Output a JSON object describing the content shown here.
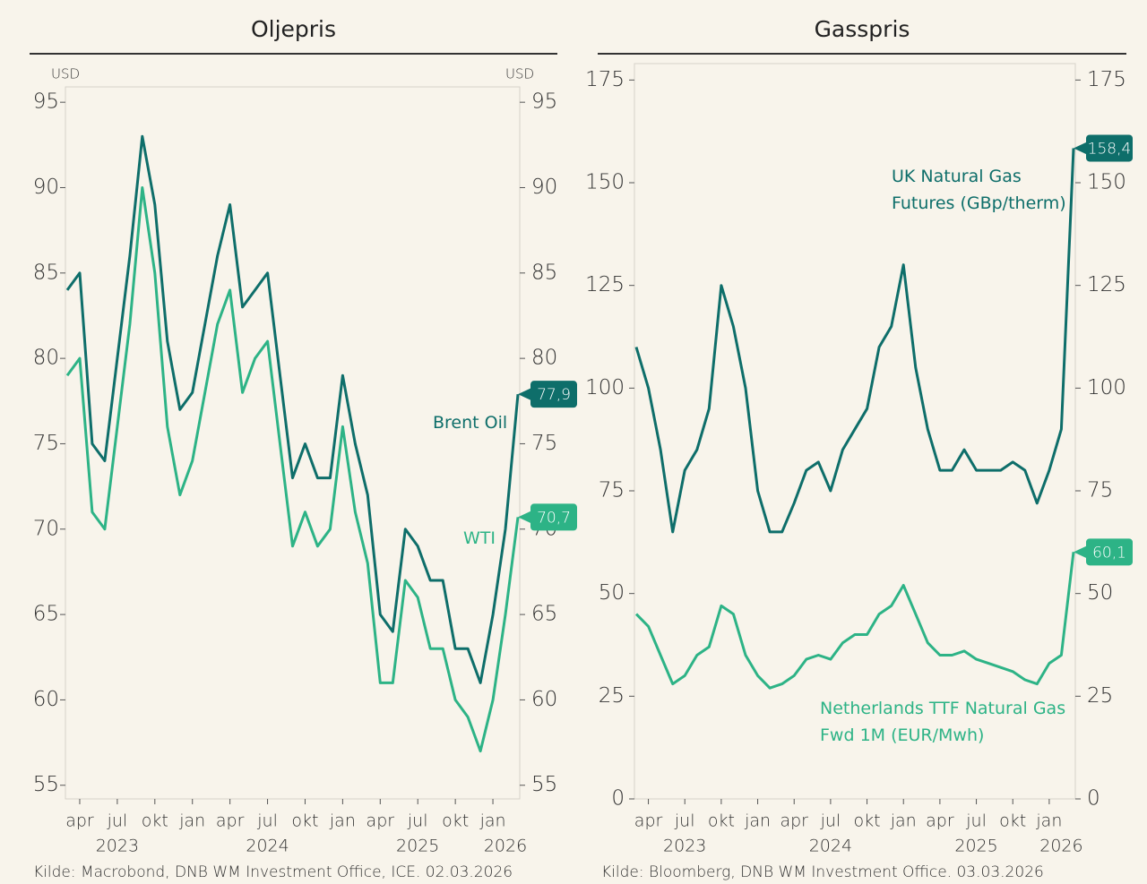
{
  "chart_data": [
    {
      "type": "line",
      "title": "Oljepris",
      "ylabel": "USD",
      "y2label": "USD",
      "source": "Kilde: Macrobond, DNB WM Investment Office, ICE. 02.03.2026",
      "x": [
        "2023-03",
        "2023-04",
        "2023-05",
        "2023-06",
        "2023-07",
        "2023-08",
        "2023-09",
        "2023-10",
        "2023-11",
        "2023-12",
        "2024-01",
        "2024-02",
        "2024-03",
        "2024-04",
        "2024-05",
        "2024-06",
        "2024-07",
        "2024-08",
        "2024-09",
        "2024-10",
        "2024-11",
        "2024-12",
        "2025-01",
        "2025-02",
        "2025-03",
        "2025-04",
        "2025-05",
        "2025-06",
        "2025-07",
        "2025-08",
        "2025-09",
        "2025-10",
        "2025-11",
        "2025-12",
        "2026-01",
        "2026-02",
        "2026-03"
      ],
      "xlim": [
        "2023-03",
        "2026-03"
      ],
      "xticks": [
        {
          "value": "2023-04",
          "label": "apr"
        },
        {
          "value": "2023-07",
          "label": "jul"
        },
        {
          "value": "2023-10",
          "label": "okt"
        },
        {
          "value": "2024-01",
          "label": "jan"
        },
        {
          "value": "2024-04",
          "label": "apr"
        },
        {
          "value": "2024-07",
          "label": "jul"
        },
        {
          "value": "2024-10",
          "label": "okt"
        },
        {
          "value": "2025-01",
          "label": "jan"
        },
        {
          "value": "2025-04",
          "label": "apr"
        },
        {
          "value": "2025-07",
          "label": "jul"
        },
        {
          "value": "2025-10",
          "label": "okt"
        },
        {
          "value": "2026-01",
          "label": "jan"
        }
      ],
      "year_labels": [
        {
          "value": "2023-07",
          "label": "2023"
        },
        {
          "value": "2024-07",
          "label": "2024"
        },
        {
          "value": "2025-07",
          "label": "2025"
        },
        {
          "value": "2026-02",
          "label": "2026"
        }
      ],
      "ylim": [
        54.2,
        95.9
      ],
      "yticks": [
        55,
        60,
        65,
        70,
        75,
        80,
        85,
        90,
        95
      ],
      "y2lim": [
        54.2,
        95.9
      ],
      "y2ticks": [
        55,
        60,
        65,
        70,
        75,
        80,
        85,
        90,
        95
      ],
      "series": [
        {
          "name": "Brent Oil",
          "color": "#0e6e6a",
          "values": [
            84,
            85,
            75,
            74,
            80,
            86,
            93,
            89,
            81,
            77,
            78,
            82,
            86,
            89,
            83,
            84,
            85,
            79,
            73,
            75,
            73,
            73,
            79,
            75,
            72,
            65,
            64,
            70,
            69,
            67,
            67,
            63,
            63,
            61,
            65,
            70,
            77.9
          ],
          "value_labels": [
            null,
            null,
            null,
            null,
            null,
            null,
            null,
            null,
            null,
            null,
            null,
            null,
            null,
            null,
            null,
            null,
            null,
            null,
            null,
            null,
            null,
            null,
            null,
            null,
            null,
            null,
            null,
            null,
            null,
            null,
            null,
            null,
            null,
            null,
            null,
            null,
            "77,9"
          ]
        },
        {
          "name": "WTI",
          "color": "#2db386",
          "values": [
            79,
            80,
            71,
            70,
            76,
            82,
            90,
            85,
            76,
            72,
            74,
            78,
            82,
            84,
            78,
            80,
            81,
            75,
            69,
            71,
            69,
            70,
            76,
            71,
            68,
            61,
            61,
            67,
            66,
            63,
            63,
            60,
            59,
            57,
            60,
            65,
            70.7
          ],
          "value_labels": [
            null,
            null,
            null,
            null,
            null,
            null,
            null,
            null,
            null,
            null,
            null,
            null,
            null,
            null,
            null,
            null,
            null,
            null,
            null,
            null,
            null,
            null,
            null,
            null,
            null,
            null,
            null,
            null,
            null,
            null,
            null,
            null,
            null,
            null,
            null,
            null,
            "70,7"
          ]
        }
      ]
    },
    {
      "type": "line",
      "title": "Gasspris",
      "source": "Kilde: Bloomberg, DNB WM Investment Office. 03.03.2026",
      "x": [
        "2023-03",
        "2023-04",
        "2023-05",
        "2023-06",
        "2023-07",
        "2023-08",
        "2023-09",
        "2023-10",
        "2023-11",
        "2023-12",
        "2024-01",
        "2024-02",
        "2024-03",
        "2024-04",
        "2024-05",
        "2024-06",
        "2024-07",
        "2024-08",
        "2024-09",
        "2024-10",
        "2024-11",
        "2024-12",
        "2025-01",
        "2025-02",
        "2025-03",
        "2025-04",
        "2025-05",
        "2025-06",
        "2025-07",
        "2025-08",
        "2025-09",
        "2025-10",
        "2025-11",
        "2025-12",
        "2026-01",
        "2026-02",
        "2026-03"
      ],
      "xlim": [
        "2023-03",
        "2026-03"
      ],
      "xticks": [
        {
          "value": "2023-04",
          "label": "apr"
        },
        {
          "value": "2023-07",
          "label": "jul"
        },
        {
          "value": "2023-10",
          "label": "okt"
        },
        {
          "value": "2024-01",
          "label": "jan"
        },
        {
          "value": "2024-04",
          "label": "apr"
        },
        {
          "value": "2024-07",
          "label": "jul"
        },
        {
          "value": "2024-10",
          "label": "okt"
        },
        {
          "value": "2025-01",
          "label": "jan"
        },
        {
          "value": "2025-04",
          "label": "apr"
        },
        {
          "value": "2025-07",
          "label": "jul"
        },
        {
          "value": "2025-10",
          "label": "okt"
        },
        {
          "value": "2026-01",
          "label": "jan"
        }
      ],
      "year_labels": [
        {
          "value": "2023-07",
          "label": "2023"
        },
        {
          "value": "2024-07",
          "label": "2024"
        },
        {
          "value": "2025-07",
          "label": "2025"
        },
        {
          "value": "2026-02",
          "label": "2026"
        }
      ],
      "ylim": [
        0,
        179
      ],
      "yticks": [
        0,
        25,
        50,
        75,
        100,
        125,
        150,
        175
      ],
      "y2lim": [
        0,
        179
      ],
      "y2ticks": [
        0,
        25,
        50,
        75,
        100,
        125,
        150,
        175
      ],
      "series": [
        {
          "name": "UK Natural Gas Futures (GBp/therm)",
          "color": "#0e6e6a",
          "values": [
            110,
            100,
            85,
            65,
            80,
            85,
            95,
            125,
            115,
            100,
            75,
            65,
            65,
            72,
            80,
            82,
            75,
            85,
            90,
            95,
            110,
            115,
            130,
            105,
            90,
            80,
            80,
            85,
            80,
            80,
            80,
            82,
            80,
            72,
            80,
            90,
            158.4
          ],
          "value_labels": [
            null,
            null,
            null,
            null,
            null,
            null,
            null,
            null,
            null,
            null,
            null,
            null,
            null,
            null,
            null,
            null,
            null,
            null,
            null,
            null,
            null,
            null,
            null,
            null,
            null,
            null,
            null,
            null,
            null,
            null,
            null,
            null,
            null,
            null,
            null,
            null,
            "158,4"
          ]
        },
        {
          "name": "Netherlands TTF Natural Gas Fwd 1M (EUR/Mwh)",
          "color": "#2db386",
          "values": [
            45,
            42,
            35,
            28,
            30,
            35,
            37,
            47,
            45,
            35,
            30,
            27,
            28,
            30,
            34,
            35,
            34,
            38,
            40,
            40,
            45,
            47,
            52,
            45,
            38,
            35,
            35,
            36,
            34,
            33,
            32,
            31,
            29,
            28,
            33,
            35,
            60.1
          ],
          "value_labels": [
            null,
            null,
            null,
            null,
            null,
            null,
            null,
            null,
            null,
            null,
            null,
            null,
            null,
            null,
            null,
            null,
            null,
            null,
            null,
            null,
            null,
            null,
            null,
            null,
            null,
            null,
            null,
            null,
            null,
            null,
            null,
            null,
            null,
            null,
            null,
            null,
            "60,1"
          ]
        }
      ]
    }
  ]
}
